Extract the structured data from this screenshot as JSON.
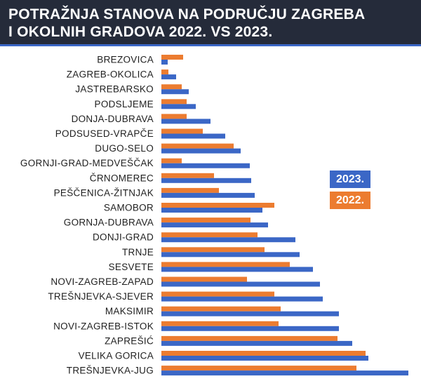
{
  "header": {
    "title_line1": "POTRAŽNJA STANOVA NA PODRUČJU ZAGREBA",
    "title_line2": "I OKOLNIH GRADOVA 2022. VS 2023."
  },
  "colors": {
    "header_bg": "#252b3a",
    "accent": "#3b67c6",
    "series_2023": "#3b67c6",
    "series_2022": "#ec7c30"
  },
  "legend": {
    "label_2023": "2023.",
    "label_2022": "2022.",
    "placement": "right"
  },
  "chart_data": {
    "type": "bar",
    "orientation": "horizontal",
    "title": "POTRAŽNJA STANOVA NA PODRUČJU ZAGREBA I OKOLNIH GRADOVA 2022. VS 2023.",
    "categories": [
      "BREZOVICA",
      "ZAGREB-OKOLICA",
      "JASTREBARSKO",
      "PODSLJEME",
      "DONJA-DUBRAVA",
      "PODSUSED-VRAPČE",
      "DUGO-SELO",
      "GORNJI-GRAD-MEDVEŠČAK",
      "ČRNOMEREC",
      "PEŠČENICA-ŽITNJAK",
      "SAMOBOR",
      "GORNJA-DUBRAVA",
      "DONJI-GRAD",
      "TRNJE",
      "SESVETE",
      "NOVI-ZAGREB-ZAPAD",
      "TREŠNJEVKA-SJEVER",
      "MAKSIMIR",
      "NOVI-ZAGREB-ISTOK",
      "ZAPREŠIĆ",
      "VELIKA GORICA",
      "TREŠNJEVKA-JUG"
    ],
    "series": [
      {
        "name": "2022.",
        "color": "#ec7c30",
        "values": [
          31,
          10,
          29,
          36,
          36,
          59,
          103,
          29,
          75,
          82,
          161,
          127,
          137,
          147,
          183,
          122,
          161,
          170,
          167,
          251,
          291,
          278
        ]
      },
      {
        "name": "2023.",
        "color": "#3b67c6",
        "values": [
          9,
          21,
          39,
          49,
          70,
          91,
          113,
          126,
          128,
          133,
          144,
          152,
          191,
          197,
          216,
          226,
          230,
          253,
          253,
          272,
          295,
          352
        ]
      }
    ],
    "xlim": [
      0,
      352
    ],
    "grid": false,
    "axis_visible": false
  }
}
